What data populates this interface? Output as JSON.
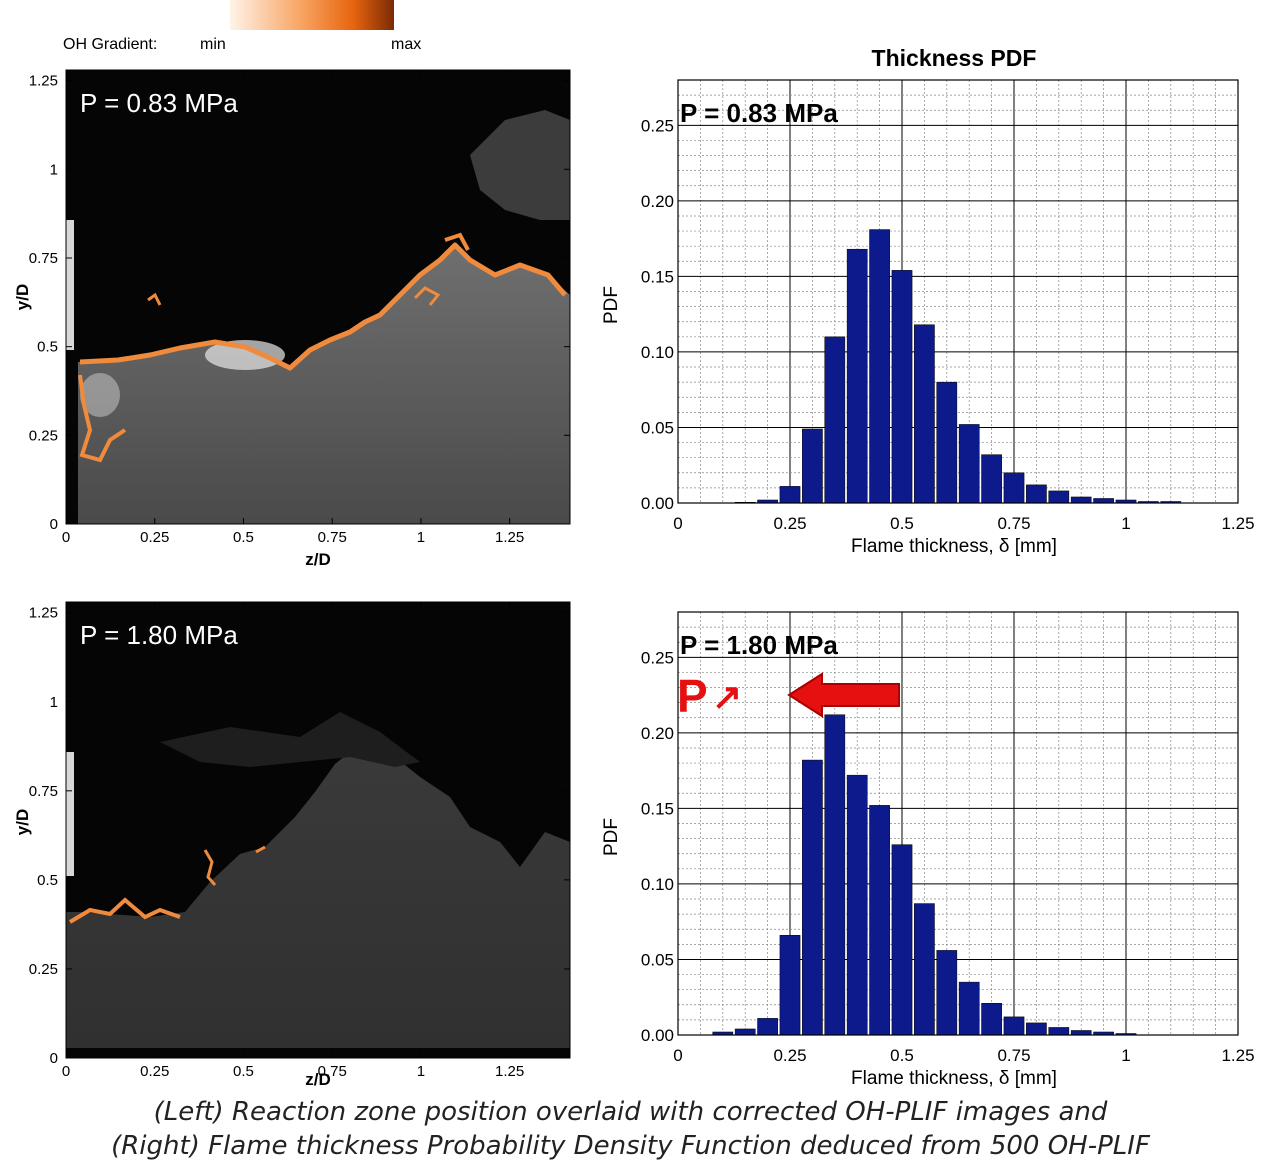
{
  "colorbar": {
    "title": "OH Gradient:",
    "min_label": "min",
    "max_label": "max",
    "colors": [
      "#fff3e8",
      "#f7a15e",
      "#e8650f",
      "#7a2a05"
    ]
  },
  "left_panels": [
    {
      "pressure_label": "P = 0.83 MPa",
      "xlabel": "z/D",
      "ylabel": "y/D",
      "x_ticks": [
        "0",
        "0.25",
        "0.5",
        "0.75",
        "1",
        "1.25"
      ],
      "y_ticks": [
        "0",
        "0.25",
        "0.5",
        "0.75",
        "1",
        "1.25"
      ]
    },
    {
      "pressure_label": "P = 1.80 MPa",
      "xlabel": "z/D",
      "ylabel": "y/D",
      "x_ticks": [
        "0",
        "0.25",
        "0.5",
        "0.75",
        "1",
        "1.25"
      ],
      "y_ticks": [
        "0",
        "0.25",
        "0.5",
        "0.75",
        "1",
        "1.25"
      ]
    }
  ],
  "annotation": {
    "symbol": "P",
    "arrow_glyph": "↗",
    "arrow_color": "#e61010"
  },
  "chart_data": [
    {
      "type": "bar",
      "title": "Thickness PDF",
      "label": "P = 0.83 MPa",
      "xlabel": "Flame thickness, δ [mm]",
      "ylabel": "PDF",
      "xlim": [
        0,
        1.25
      ],
      "ylim": [
        0,
        0.28
      ],
      "x_ticks": [
        "0",
        "0.25",
        "0.5",
        "0.75",
        "1",
        "1.25"
      ],
      "y_ticks": [
        "0.00",
        "0.05",
        "0.10",
        "0.15",
        "0.20",
        "0.25"
      ],
      "bar_color": "#0d1a8c",
      "x": [
        0.05,
        0.1,
        0.15,
        0.2,
        0.25,
        0.3,
        0.35,
        0.4,
        0.45,
        0.5,
        0.55,
        0.6,
        0.65,
        0.7,
        0.75,
        0.8,
        0.85,
        0.9,
        0.95,
        1.0,
        1.05,
        1.1
      ],
      "values": [
        0.0,
        0.0,
        0.0005,
        0.002,
        0.011,
        0.049,
        0.11,
        0.168,
        0.181,
        0.154,
        0.118,
        0.08,
        0.052,
        0.032,
        0.02,
        0.012,
        0.008,
        0.004,
        0.003,
        0.002,
        0.001,
        0.001
      ]
    },
    {
      "type": "bar",
      "title": "",
      "label": "P = 1.80 MPa",
      "xlabel": "Flame thickness, δ [mm]",
      "ylabel": "PDF",
      "xlim": [
        0,
        1.25
      ],
      "ylim": [
        0,
        0.28
      ],
      "x_ticks": [
        "0",
        "0.25",
        "0.5",
        "0.75",
        "1",
        "1.25"
      ],
      "y_ticks": [
        "0.00",
        "0.05",
        "0.10",
        "0.15",
        "0.20",
        "0.25"
      ],
      "bar_color": "#0d1a8c",
      "x": [
        0.05,
        0.1,
        0.15,
        0.2,
        0.25,
        0.3,
        0.35,
        0.4,
        0.45,
        0.5,
        0.55,
        0.6,
        0.65,
        0.7,
        0.75,
        0.8,
        0.85,
        0.9,
        0.95,
        1.0
      ],
      "values": [
        0.0,
        0.002,
        0.004,
        0.011,
        0.066,
        0.182,
        0.212,
        0.172,
        0.152,
        0.126,
        0.087,
        0.056,
        0.035,
        0.021,
        0.012,
        0.008,
        0.005,
        0.003,
        0.002,
        0.001
      ]
    }
  ],
  "caption": {
    "line1": "(Left) Reaction zone position overlaid with corrected OH-PLIF images and",
    "line2": "(Right) Flame thickness Probability Density Function deduced from 500 OH-PLIF"
  }
}
